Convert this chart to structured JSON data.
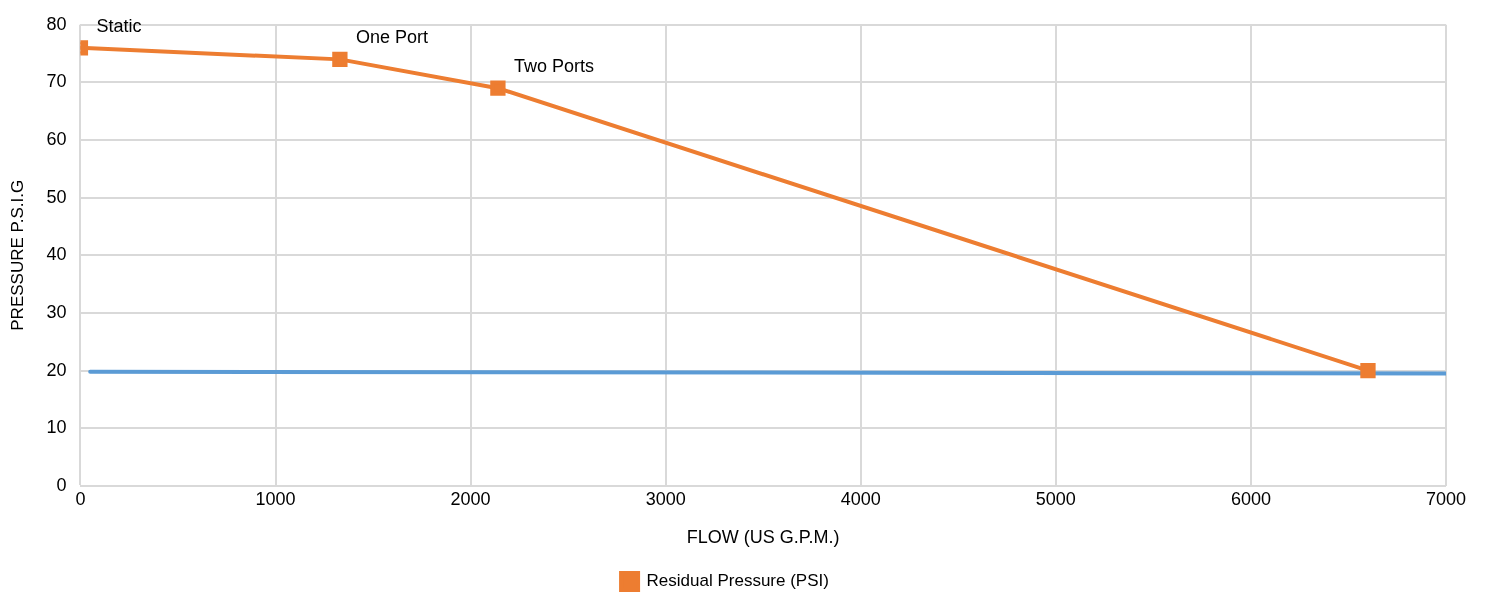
{
  "chart_data": {
    "type": "line",
    "xlabel": "FLOW (US G.P.M.)",
    "ylabel": "PRESSURE P.S.I.G",
    "xlim": [
      0,
      7000
    ],
    "xticks": [
      0,
      1000,
      2000,
      3000,
      4000,
      5000,
      6000,
      7000
    ],
    "ylim": [
      0,
      80
    ],
    "yticks": [
      0,
      10,
      20,
      30,
      40,
      50,
      60,
      70,
      80
    ],
    "grid": true,
    "legend": "bottom",
    "series": [
      {
        "name": "Residual Pressure (PSI)",
        "color": "#ed7d31",
        "x": [
          0,
          1330,
          2140,
          6600
        ],
        "values": [
          76,
          74,
          69,
          20
        ],
        "marker": "square"
      },
      {
        "color": "#5b9bd5",
        "x": [
          50,
          7000
        ],
        "values": [
          19.8,
          19.5
        ],
        "marker": "none"
      }
    ],
    "annotations": [
      {
        "text": "Static",
        "x": 0,
        "y": 76
      },
      {
        "text": "One Port",
        "x": 1330,
        "y": 74
      },
      {
        "text": "Two Ports",
        "x": 2140,
        "y": 69
      }
    ]
  }
}
